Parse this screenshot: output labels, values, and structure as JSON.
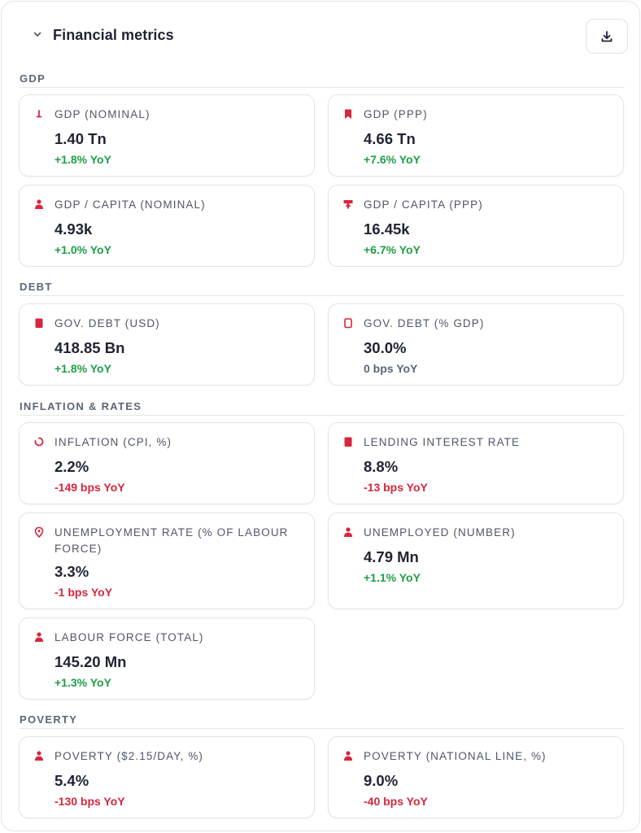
{
  "header": {
    "title": "Financial metrics"
  },
  "colors": {
    "accent": "#d7263d",
    "positive": "#1e9e45",
    "negative": "#d7263d",
    "neutral": "#5a6577"
  },
  "sections": {
    "gdp": {
      "label": "GDP",
      "cards": [
        {
          "icon": "bar-down-icon",
          "label": "GDP (NOMINAL)",
          "value": "1.40 Tn",
          "change": "+1.8% YoY",
          "trend": "positive"
        },
        {
          "icon": "bookmark-icon",
          "label": "GDP (PPP)",
          "value": "4.66 Tn",
          "change": "+7.6% YoY",
          "trend": "positive"
        },
        {
          "icon": "person-icon",
          "label": "GDP / CAPITA (NOMINAL)",
          "value": "4.93k",
          "change": "+1.0% YoY",
          "trend": "positive"
        },
        {
          "icon": "podium-icon",
          "label": "GDP / CAPITA (PPP)",
          "value": "16.45k",
          "change": "+6.7% YoY",
          "trend": "positive"
        }
      ]
    },
    "debt": {
      "label": "DEBT",
      "cards": [
        {
          "icon": "filled-rect-icon",
          "label": "GOV. DEBT (USD)",
          "value": "418.85 Bn",
          "change": "+1.8% YoY",
          "trend": "positive"
        },
        {
          "icon": "outline-rect-icon",
          "label": "GOV. DEBT (% GDP)",
          "value": "30.0%",
          "change": "0 bps YoY",
          "trend": "neutral"
        }
      ]
    },
    "inflation": {
      "label": "INFLATION & RATES",
      "cards": [
        {
          "icon": "spinner-icon",
          "label": "INFLATION (CPI, %)",
          "value": "2.2%",
          "change": "-149 bps YoY",
          "trend": "negative"
        },
        {
          "icon": "filled-rect-icon",
          "label": "LENDING INTEREST RATE",
          "value": "8.8%",
          "change": "-13 bps YoY",
          "trend": "negative"
        },
        {
          "icon": "location-pin-icon",
          "label": "UNEMPLOYMENT RATE (% OF LABOUR FORCE)",
          "value": "3.3%",
          "change": "-1 bps YoY",
          "trend": "negative"
        },
        {
          "icon": "person-icon",
          "label": "UNEMPLOYED (NUMBER)",
          "value": "4.79 Mn",
          "change": "+1.1% YoY",
          "trend": "positive"
        },
        {
          "icon": "person-icon",
          "label": "LABOUR FORCE (TOTAL)",
          "value": "145.20 Mn",
          "change": "+1.3% YoY",
          "trend": "positive"
        }
      ]
    },
    "poverty": {
      "label": "POVERTY",
      "cards": [
        {
          "icon": "person-icon",
          "label": "POVERTY ($2.15/DAY, %)",
          "value": "5.4%",
          "change": "-130 bps YoY",
          "trend": "negative"
        },
        {
          "icon": "person-icon",
          "label": "POVERTY (NATIONAL LINE, %)",
          "value": "9.0%",
          "change": "-40 bps YoY",
          "trend": "negative"
        }
      ]
    }
  }
}
